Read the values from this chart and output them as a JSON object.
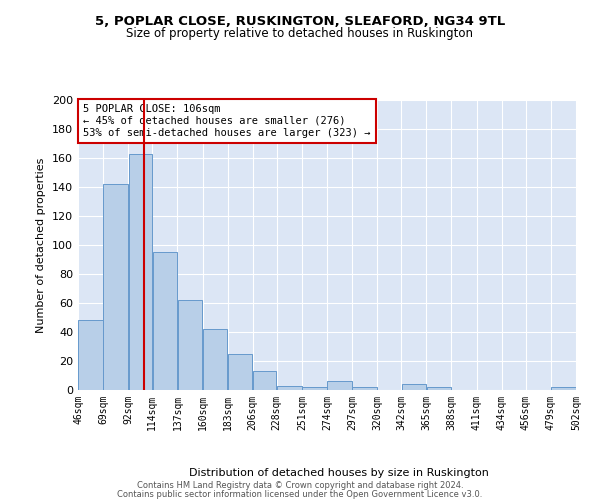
{
  "title1": "5, POPLAR CLOSE, RUSKINGTON, SLEAFORD, NG34 9TL",
  "title2": "Size of property relative to detached houses in Ruskington",
  "bar_color": "#b8cfe8",
  "bar_edge_color": "#6699cc",
  "background_color": "#dce6f5",
  "grid_color": "#ffffff",
  "bin_labels": [
    "46sqm",
    "69sqm",
    "92sqm",
    "114sqm",
    "137sqm",
    "160sqm",
    "183sqm",
    "206sqm",
    "228sqm",
    "251sqm",
    "274sqm",
    "297sqm",
    "320sqm",
    "342sqm",
    "365sqm",
    "388sqm",
    "411sqm",
    "434sqm",
    "456sqm",
    "479sqm",
    "502sqm"
  ],
  "bin_edges": [
    46,
    69,
    92,
    114,
    137,
    160,
    183,
    206,
    228,
    251,
    274,
    297,
    320,
    342,
    365,
    388,
    411,
    434,
    456,
    479,
    502
  ],
  "bar_heights": [
    48,
    142,
    163,
    95,
    62,
    42,
    25,
    13,
    3,
    2,
    6,
    2,
    0,
    4,
    2,
    0,
    0,
    0,
    0,
    2
  ],
  "property_line_x": 106,
  "property_line_color": "#cc0000",
  "ylabel": "Number of detached properties",
  "xlabel": "Distribution of detached houses by size in Ruskington",
  "ylim": [
    0,
    200
  ],
  "yticks": [
    0,
    20,
    40,
    60,
    80,
    100,
    120,
    140,
    160,
    180,
    200
  ],
  "annotation_title": "5 POPLAR CLOSE: 106sqm",
  "annotation_line1": "← 45% of detached houses are smaller (276)",
  "annotation_line2": "53% of semi-detached houses are larger (323) →",
  "footer1": "Contains HM Land Registry data © Crown copyright and database right 2024.",
  "footer2": "Contains public sector information licensed under the Open Government Licence v3.0."
}
